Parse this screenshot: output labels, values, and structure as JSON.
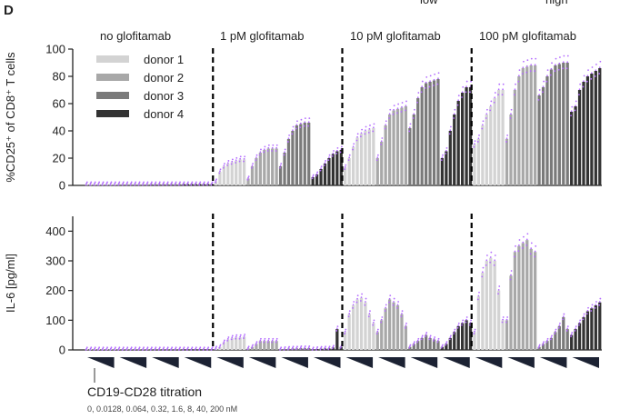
{
  "figure": {
    "panel_letter": "D",
    "top_labels": {
      "low": "low",
      "high": "high"
    },
    "conditions": [
      "no glofitamab",
      "1 pM  glofitamab",
      "10 pM  glofitamab",
      "100 pM  glofitamab"
    ],
    "legend": [
      "donor 1",
      "donor 2",
      "donor 3",
      "donor 4"
    ],
    "bottom_caption": "CD19-CD28  titration",
    "bottom_subcaption": "0, 0.0128, 0.064, 0.32, 1.6, 8, 40, 200 nM",
    "colors": {
      "donor1": "#d3d3d3",
      "donor2": "#a8a8a8",
      "donor3": "#7a7a7a",
      "donor4": "#333333",
      "points": "#b36bff",
      "triangle": "#1c2233",
      "divider": "#000000"
    }
  },
  "chart_data": [
    {
      "type": "bar",
      "ylabel": "%CD25⁺ of CD8⁺ T cells",
      "ylim": [
        0,
        100
      ],
      "yticks": [
        0,
        20,
        40,
        60,
        80,
        100
      ],
      "groups": [
        "no glofitamab",
        "1 pM glofitamab",
        "10 pM glofitamab",
        "100 pM glofitamab"
      ],
      "categories_per_donor": [
        "0",
        "0.0128",
        "0.064",
        "0.32",
        "1.6",
        "8",
        "40",
        "200"
      ],
      "series": [
        {
          "name": "donor 1",
          "values": [
            [
              1,
              1,
              1,
              1,
              1,
              1,
              1,
              1
            ],
            [
              3,
              10,
              14,
              16,
              17,
              18,
              19,
              19
            ],
            [
              13,
              20,
              28,
              35,
              38,
              40,
              41,
              42
            ],
            [
              30,
              34,
              44,
              52,
              58,
              64,
              70,
              70
            ]
          ]
        },
        {
          "name": "donor 2",
          "values": [
            [
              1,
              1,
              1,
              1,
              1,
              1,
              1,
              1
            ],
            [
              5,
              14,
              20,
              24,
              26,
              27,
              27,
              27
            ],
            [
              20,
              32,
              44,
              52,
              55,
              56,
              57,
              58
            ],
            [
              34,
              52,
              70,
              80,
              86,
              87,
              88,
              88
            ]
          ]
        },
        {
          "name": "donor 3",
          "values": [
            [
              1,
              1,
              1,
              1,
              1,
              1,
              1,
              1
            ],
            [
              14,
              24,
              34,
              40,
              44,
              45,
              46,
              46
            ],
            [
              42,
              52,
              64,
              72,
              75,
              76,
              77,
              78
            ],
            [
              66,
              72,
              80,
              85,
              88,
              89,
              90,
              90
            ]
          ]
        },
        {
          "name": "donor 4",
          "values": [
            [
              1,
              1,
              1,
              1,
              1,
              1,
              1,
              1
            ],
            [
              6,
              8,
              12,
              16,
              20,
              23,
              25,
              26
            ],
            [
              20,
              25,
              40,
              52,
              62,
              68,
              72,
              72
            ],
            [
              54,
              58,
              70,
              76,
              80,
              82,
              84,
              86
            ]
          ]
        }
      ]
    },
    {
      "type": "bar",
      "ylabel": "IL-6 [pg/ml]",
      "ylim": [
        0,
        450
      ],
      "yticks": [
        0,
        100,
        200,
        300,
        400
      ],
      "groups": [
        "no glofitamab",
        "1 pM glofitamab",
        "10 pM glofitamab",
        "100 pM glofitamab"
      ],
      "categories_per_donor": [
        "0",
        "0.0128",
        "0.064",
        "0.32",
        "1.6",
        "8",
        "40",
        "200"
      ],
      "series": [
        {
          "name": "donor 1",
          "values": [
            [
              2,
              2,
              2,
              2,
              2,
              2,
              2,
              2
            ],
            [
              5,
              10,
              25,
              35,
              40,
              42,
              42,
              44
            ],
            [
              60,
              120,
              150,
              170,
              175,
              160,
              120,
              90
            ],
            [
              60,
              180,
              260,
              300,
              310,
              300,
              200,
              100
            ]
          ]
        },
        {
          "name": "donor 2",
          "values": [
            [
              2,
              2,
              2,
              2,
              2,
              2,
              2,
              2
            ],
            [
              5,
              10,
              20,
              30,
              30,
              30,
              30,
              30
            ],
            [
              60,
              100,
              140,
              170,
              160,
              150,
              120,
              80
            ],
            [
              100,
              250,
              330,
              350,
              360,
              370,
              340,
              330
            ]
          ]
        },
        {
          "name": "donor 3",
          "values": [
            [
              2,
              2,
              2,
              2,
              2,
              2,
              2,
              2
            ],
            [
              2,
              3,
              4,
              5,
              5,
              6,
              6,
              6
            ],
            [
              10,
              20,
              30,
              40,
              50,
              40,
              35,
              30
            ],
            [
              10,
              20,
              30,
              40,
              60,
              80,
              110,
              70
            ]
          ]
        },
        {
          "name": "donor 4",
          "values": [
            [
              2,
              2,
              2,
              2,
              2,
              2,
              2,
              2
            ],
            [
              2,
              3,
              4,
              5,
              5,
              8,
              70,
              10
            ],
            [
              10,
              20,
              40,
              60,
              80,
              90,
              100,
              90
            ],
            [
              50,
              70,
              90,
              110,
              130,
              140,
              150,
              160
            ]
          ]
        }
      ]
    }
  ]
}
